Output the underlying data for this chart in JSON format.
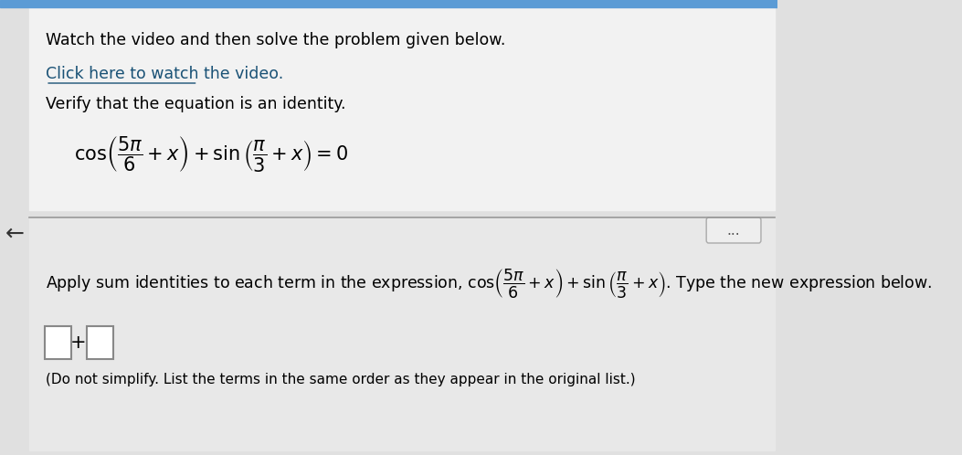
{
  "bg_color": "#e0e0e0",
  "top_bg_color": "#5b9bd5",
  "arrow_color": "#333333",
  "line_color": "#999999",
  "text_color": "#000000",
  "link_color": "#1a5276",
  "title_text": "Watch the video and then solve the problem given below.",
  "link_text": "Click here to watch the video.",
  "verify_text": "Verify that the equation is an identity.",
  "note_text": "(Do not simplify. List the terms in the same order as they appear in the original list.)"
}
